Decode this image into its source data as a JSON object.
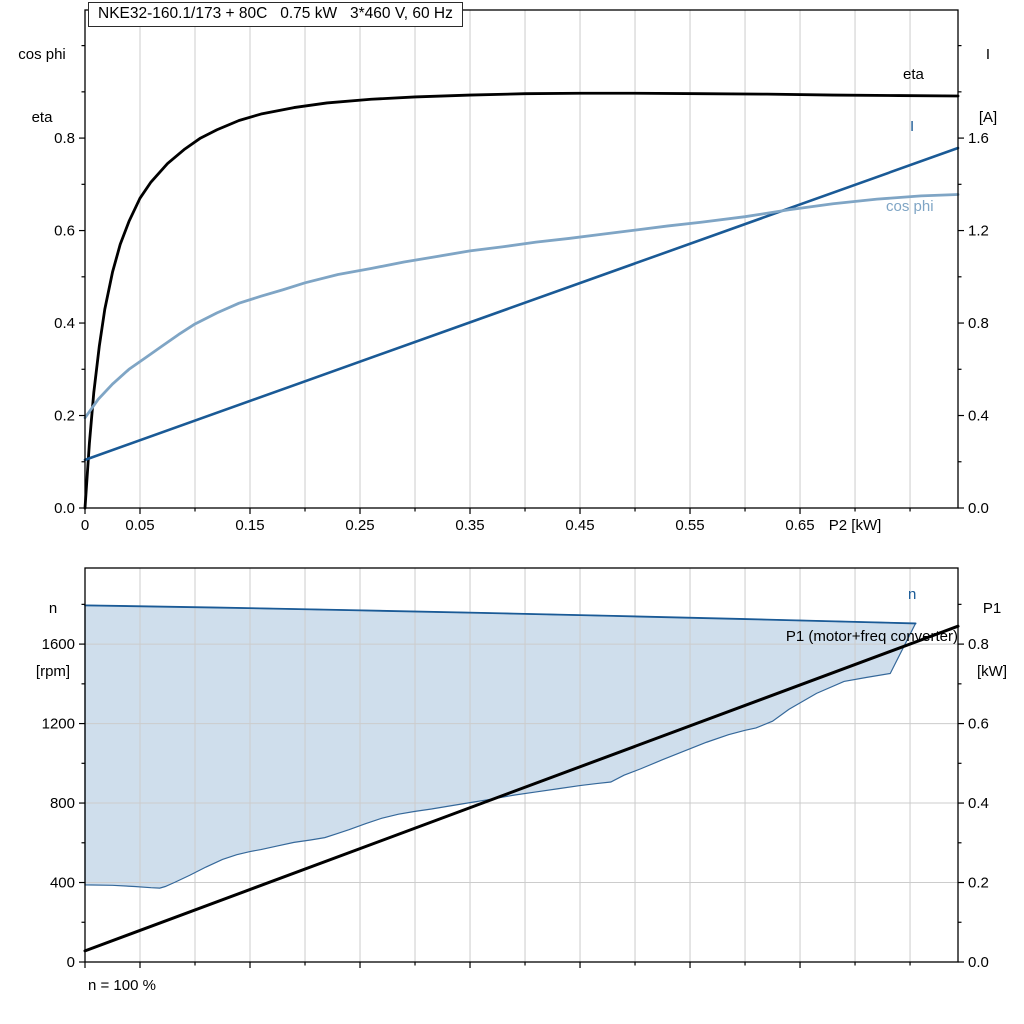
{
  "title_box": {
    "text": "NKE32-160.1/173 + 80C   0.75 kW   3*460 V, 60 Hz"
  },
  "footnote": "n = 100 %",
  "colors": {
    "grid": "#cccccc",
    "axis": "#000000",
    "dark_blue": "#1a5a96",
    "light_blue": "#7fa5c5",
    "region_fill": "#cfdeec",
    "region_stroke": "#35689a"
  },
  "chart_data": [
    {
      "type": "line",
      "title": "NKE32-160.1/173 + 80C   0.75 kW   3*460 V, 60 Hz",
      "x": {
        "label": "P2 [kW]",
        "range": [
          0,
          0.7936
        ],
        "grid_step": 0.05,
        "minor_step": 0.05,
        "tick_values": [
          0,
          0.05,
          0.15,
          0.25,
          0.35,
          0.45,
          0.55,
          0.65
        ],
        "tick_labels": [
          "0",
          "0.05",
          "0.15",
          "0.25",
          "0.35",
          "0.45",
          "0.55",
          "0.65"
        ]
      },
      "left": {
        "label_lines": [
          "cos phi",
          "eta"
        ],
        "range": [
          0,
          1.077
        ],
        "minor_step": 0.1,
        "tick_values": [
          0,
          0.2,
          0.4,
          0.6,
          0.8
        ],
        "tick_labels": [
          "0.0",
          "0.2",
          "0.4",
          "0.6",
          "0.8"
        ]
      },
      "right": {
        "label_lines": [
          "I",
          "[A]"
        ],
        "range": [
          0,
          2.154
        ],
        "minor_step": 0.2,
        "tick_values": [
          0,
          0.4,
          0.8,
          1.2,
          1.6
        ],
        "tick_labels": [
          "0.0",
          "0.4",
          "0.8",
          "1.2",
          "1.6"
        ]
      },
      "series": [
        {
          "name": "eta",
          "label": "eta",
          "axis": "left",
          "color": "#000000",
          "width": 2.8,
          "points": [
            [
              0,
              0
            ],
            [
              0.004,
              0.14
            ],
            [
              0.008,
              0.25
            ],
            [
              0.013,
              0.35
            ],
            [
              0.018,
              0.43
            ],
            [
              0.025,
              0.51
            ],
            [
              0.032,
              0.57
            ],
            [
              0.04,
              0.62
            ],
            [
              0.05,
              0.67
            ],
            [
              0.06,
              0.705
            ],
            [
              0.075,
              0.745
            ],
            [
              0.09,
              0.775
            ],
            [
              0.105,
              0.8
            ],
            [
              0.12,
              0.818
            ],
            [
              0.14,
              0.838
            ],
            [
              0.16,
              0.852
            ],
            [
              0.19,
              0.866
            ],
            [
              0.22,
              0.876
            ],
            [
              0.26,
              0.884
            ],
            [
              0.3,
              0.889
            ],
            [
              0.35,
              0.893
            ],
            [
              0.4,
              0.896
            ],
            [
              0.45,
              0.897
            ],
            [
              0.5,
              0.897
            ],
            [
              0.56,
              0.896
            ],
            [
              0.62,
              0.895
            ],
            [
              0.68,
              0.893
            ],
            [
              0.74,
              0.892
            ],
            [
              0.7936,
              0.891
            ]
          ]
        },
        {
          "name": "current",
          "label": "I",
          "axis": "right",
          "color": "#1a5a96",
          "width": 2.6,
          "points": [
            [
              0,
              0.208
            ],
            [
              0.7936,
              1.557
            ]
          ]
        },
        {
          "name": "cos-phi",
          "label": "cos phi",
          "axis": "left",
          "color": "#7fa5c5",
          "width": 2.8,
          "points": [
            [
              0,
              0.195
            ],
            [
              0.012,
              0.235
            ],
            [
              0.025,
              0.268
            ],
            [
              0.04,
              0.3
            ],
            [
              0.055,
              0.325
            ],
            [
              0.07,
              0.35
            ],
            [
              0.085,
              0.375
            ],
            [
              0.1,
              0.398
            ],
            [
              0.12,
              0.422
            ],
            [
              0.14,
              0.443
            ],
            [
              0.16,
              0.458
            ],
            [
              0.18,
              0.472
            ],
            [
              0.2,
              0.487
            ],
            [
              0.23,
              0.505
            ],
            [
              0.26,
              0.518
            ],
            [
              0.29,
              0.532
            ],
            [
              0.32,
              0.544
            ],
            [
              0.35,
              0.556
            ],
            [
              0.38,
              0.565
            ],
            [
              0.41,
              0.575
            ],
            [
              0.44,
              0.583
            ],
            [
              0.47,
              0.592
            ],
            [
              0.5,
              0.601
            ],
            [
              0.53,
              0.61
            ],
            [
              0.56,
              0.618
            ],
            [
              0.6,
              0.63
            ],
            [
              0.64,
              0.645
            ],
            [
              0.68,
              0.658
            ],
            [
              0.72,
              0.668
            ],
            [
              0.76,
              0.675
            ],
            [
              0.7936,
              0.678
            ]
          ]
        }
      ]
    },
    {
      "type": "line",
      "title": "",
      "x": {
        "label": "",
        "range": [
          0,
          0.7936
        ],
        "grid_step": 0.05,
        "minor_step": 0.05,
        "tick_values": [
          0,
          0.05,
          0.15,
          0.25,
          0.35,
          0.45,
          0.55,
          0.65
        ],
        "tick_labels": [
          "",
          "",
          "",
          "",
          "",
          "",
          "",
          ""
        ]
      },
      "left": {
        "label_lines": [
          "n",
          "[rpm]"
        ],
        "range": [
          0,
          1983
        ],
        "minor_step": 200,
        "tick_values": [
          0,
          400,
          800,
          1200,
          1600
        ],
        "tick_labels": [
          "0",
          "400",
          "800",
          "1200",
          "1600"
        ]
      },
      "right": {
        "label_lines": [
          "P1",
          "[kW]"
        ],
        "range": [
          0,
          0.9915
        ],
        "minor_step": 0.1,
        "tick_values": [
          0,
          0.2,
          0.4,
          0.6,
          0.8
        ],
        "tick_labels": [
          "0.0",
          "0.2",
          "0.4",
          "0.6",
          "0.8"
        ]
      },
      "region": {
        "fill": "#cfdeec",
        "stroke": "#35689a",
        "points": [
          [
            0,
            1795
          ],
          [
            0.12,
            1784
          ],
          [
            0.24,
            1771
          ],
          [
            0.36,
            1757
          ],
          [
            0.48,
            1742
          ],
          [
            0.6,
            1726
          ],
          [
            0.7,
            1712
          ],
          [
            0.755,
            1704
          ],
          [
            0.732,
            1452
          ],
          [
            0.71,
            1432
          ],
          [
            0.69,
            1412
          ],
          [
            0.665,
            1352
          ],
          [
            0.64,
            1272
          ],
          [
            0.625,
            1212
          ],
          [
            0.61,
            1178
          ],
          [
            0.6,
            1166
          ],
          [
            0.585,
            1144
          ],
          [
            0.565,
            1106
          ],
          [
            0.545,
            1062
          ],
          [
            0.525,
            1018
          ],
          [
            0.505,
            972
          ],
          [
            0.49,
            940
          ],
          [
            0.478,
            906
          ],
          [
            0.465,
            898
          ],
          [
            0.45,
            888
          ],
          [
            0.43,
            872
          ],
          [
            0.41,
            856
          ],
          [
            0.39,
            840
          ],
          [
            0.37,
            820
          ],
          [
            0.35,
            802
          ],
          [
            0.33,
            784
          ],
          [
            0.315,
            770
          ],
          [
            0.3,
            758
          ],
          [
            0.285,
            744
          ],
          [
            0.27,
            724
          ],
          [
            0.255,
            696
          ],
          [
            0.24,
            666
          ],
          [
            0.228,
            644
          ],
          [
            0.218,
            626
          ],
          [
            0.205,
            614
          ],
          [
            0.19,
            602
          ],
          [
            0.175,
            584
          ],
          [
            0.16,
            566
          ],
          [
            0.15,
            556
          ],
          [
            0.138,
            540
          ],
          [
            0.125,
            516
          ],
          [
            0.11,
            478
          ],
          [
            0.095,
            436
          ],
          [
            0.082,
            402
          ],
          [
            0.073,
            380
          ],
          [
            0.068,
            372
          ],
          [
            0.06,
            374
          ],
          [
            0.045,
            380
          ],
          [
            0.025,
            386
          ],
          [
            0,
            388
          ]
        ]
      },
      "series": [
        {
          "name": "n",
          "label": "n",
          "axis": "left",
          "color": "#1a5a96",
          "width": 1.8,
          "points": [
            [
              0,
              1795
            ],
            [
              0.12,
              1784
            ],
            [
              0.24,
              1771
            ],
            [
              0.36,
              1757
            ],
            [
              0.48,
              1742
            ],
            [
              0.6,
              1726
            ],
            [
              0.7,
              1712
            ],
            [
              0.755,
              1704
            ]
          ]
        },
        {
          "name": "p1",
          "label": "P1 (motor+freq converter)",
          "axis": "right",
          "color": "#000000",
          "width": 3,
          "points": [
            [
              0,
              0.028
            ],
            [
              0.7936,
              0.845
            ]
          ]
        }
      ]
    }
  ]
}
